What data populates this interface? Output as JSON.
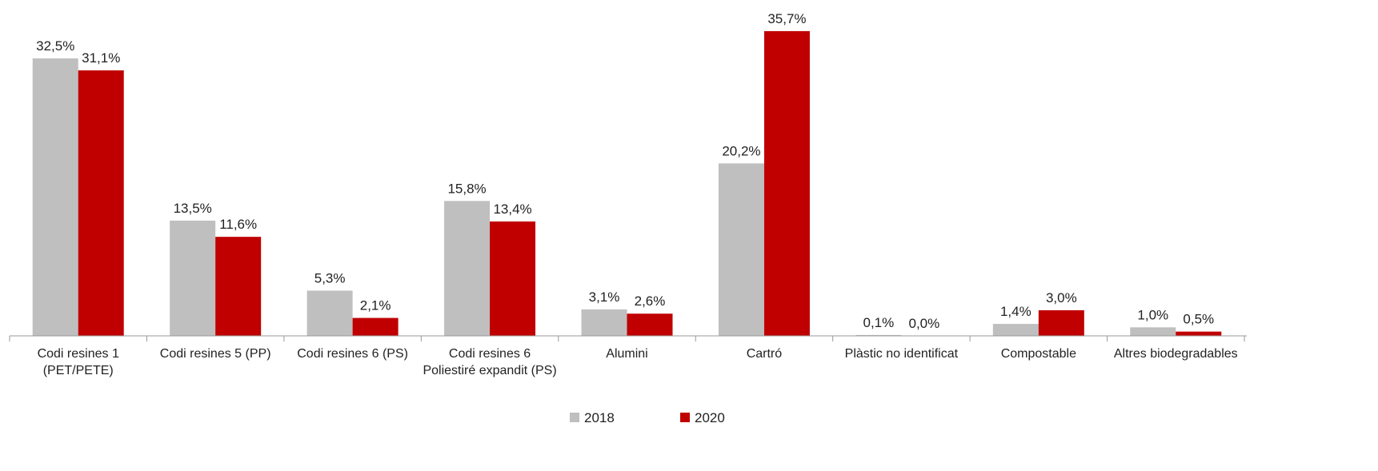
{
  "chart_data": {
    "type": "bar",
    "categories": [
      "Codi resines 1 (PET/PETE)",
      "Codi resines 5 (PP)",
      "Codi resines 6 (PS)",
      "Codi resines 6 Poliestiré expandit (PS)",
      "Alumini",
      "Cartró",
      "Plàstic no identificat",
      "Compostable",
      "Altres biodegradables"
    ],
    "series": [
      {
        "name": "2018",
        "color": "#bfbfbf",
        "values": [
          32.5,
          13.5,
          5.3,
          15.8,
          3.1,
          20.2,
          0.1,
          1.4,
          1.0
        ],
        "value_labels": [
          "32,5%",
          "13,5%",
          "5,3%",
          "15,8%",
          "3,1%",
          "20,2%",
          "0,1%",
          "1,4%",
          "1,0%"
        ]
      },
      {
        "name": "2020",
        "color": "#c00000",
        "values": [
          31.1,
          11.6,
          2.1,
          13.4,
          2.6,
          35.7,
          0.0,
          3.0,
          0.5
        ],
        "value_labels": [
          "31,1%",
          "11,6%",
          "2,1%",
          "13,4%",
          "2,6%",
          "35,7%",
          "0,0%",
          "3,0%",
          "0,5%"
        ]
      }
    ],
    "ylim": [
      0,
      40
    ],
    "legend": "bottom"
  }
}
